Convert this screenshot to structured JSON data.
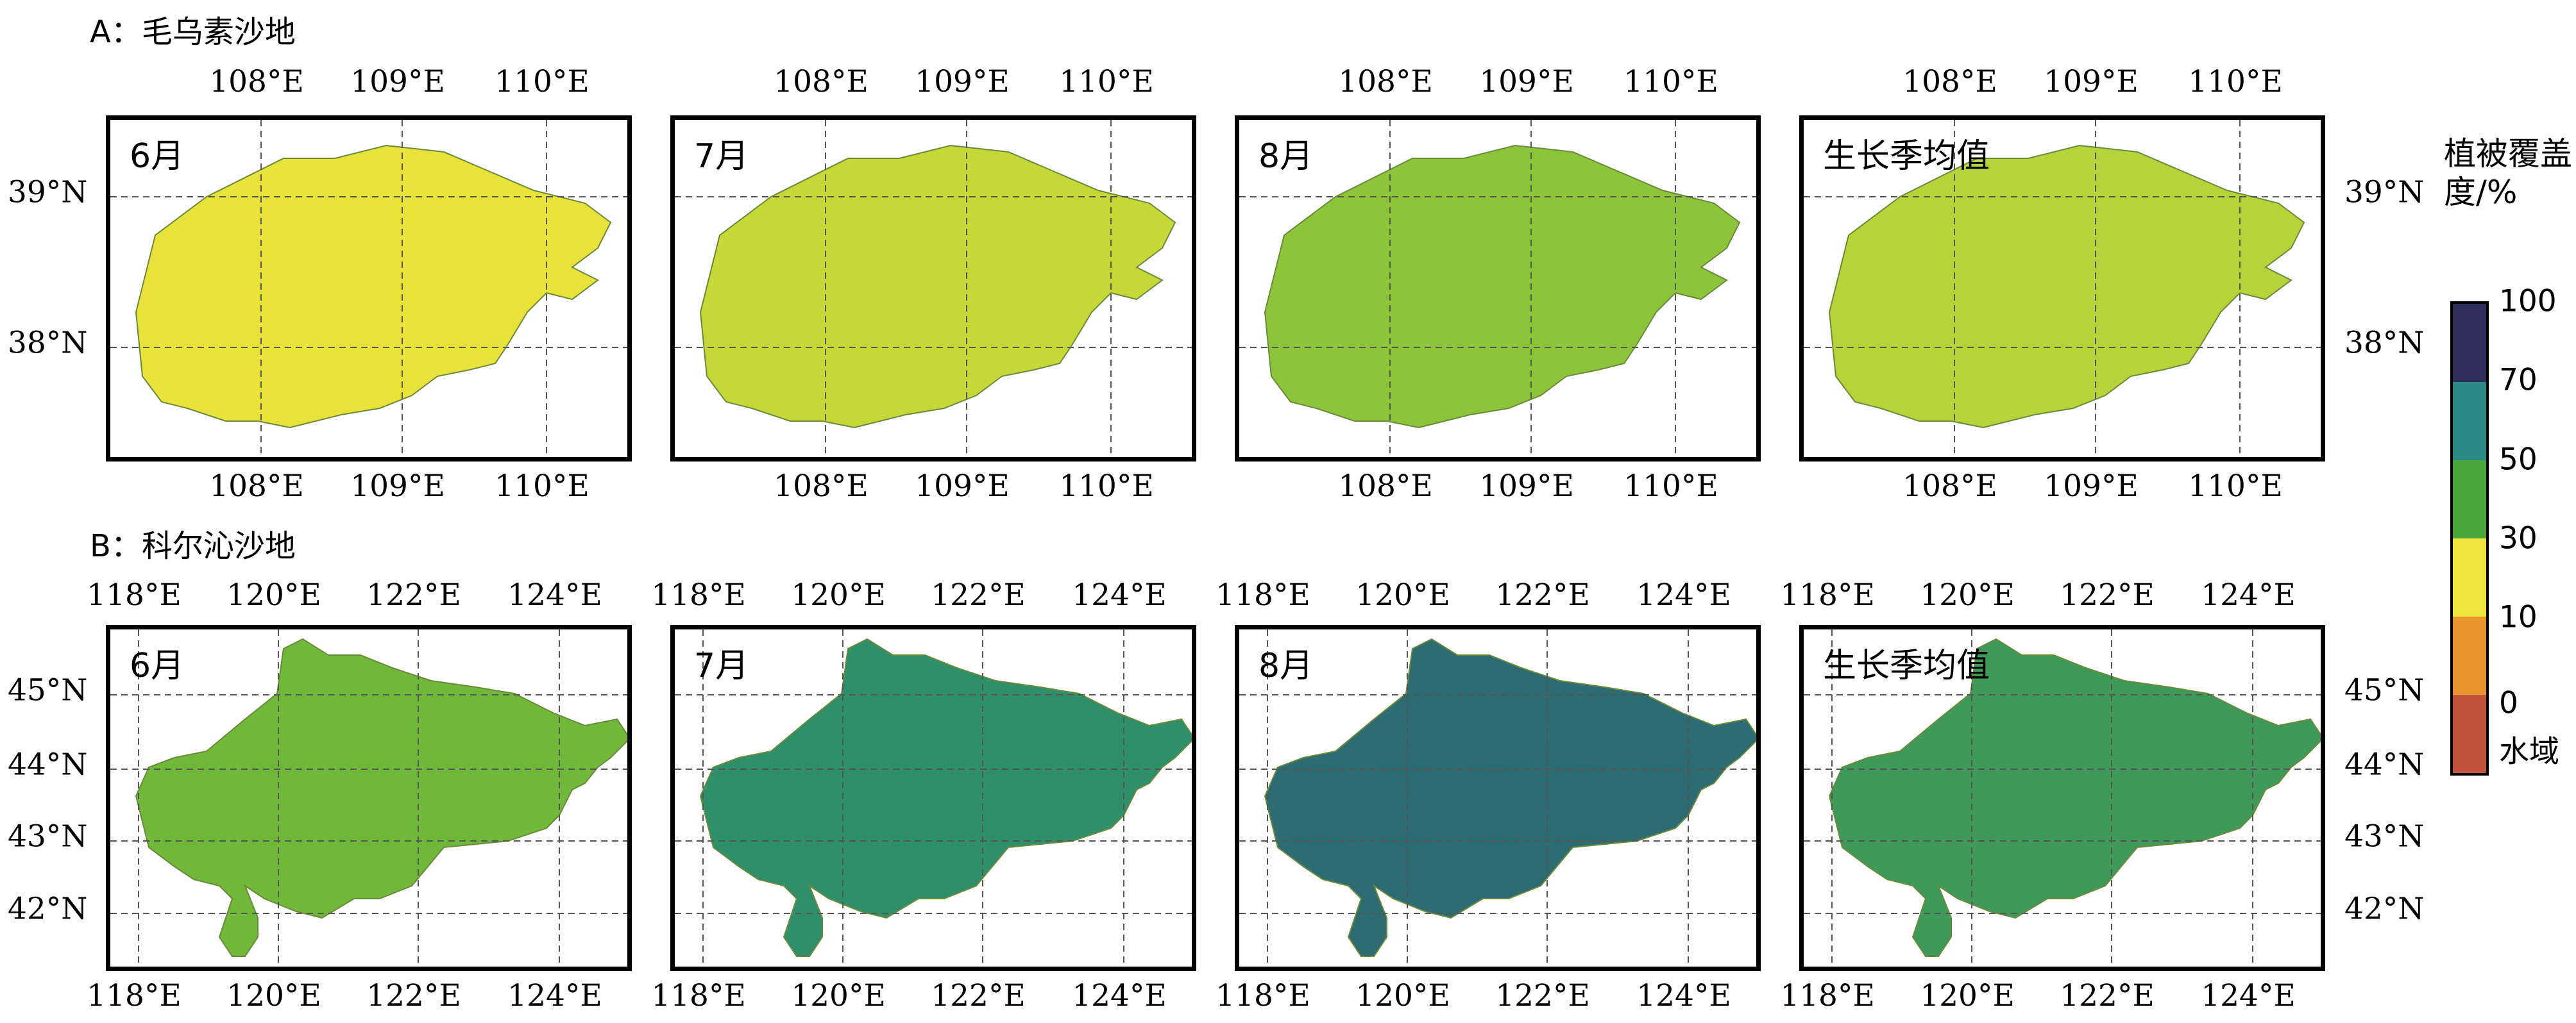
{
  "sections": [
    {
      "id": "A",
      "title": "A：毛乌素沙地",
      "lon_labels": [
        "108°E",
        "109°E",
        "110°E"
      ],
      "lat_labels": [
        "39°N",
        "38°N"
      ],
      "panels": [
        {
          "label": "6月",
          "dominant": "#e8e23a"
        },
        {
          "label": "7月",
          "dominant": "#c6d838"
        },
        {
          "label": "8月",
          "dominant": "#8cc43a"
        },
        {
          "label": "生长季均值",
          "dominant": "#b6d43a"
        }
      ]
    },
    {
      "id": "B",
      "title": "B：科尔沁沙地",
      "lon_labels": [
        "118°E",
        "120°E",
        "122°E",
        "124°E"
      ],
      "lat_labels": [
        "45°N",
        "44°N",
        "43°N",
        "42°N"
      ],
      "panels": [
        {
          "label": "6月",
          "dominant": "#6fb83a"
        },
        {
          "label": "7月",
          "dominant": "#2f8f6a"
        },
        {
          "label": "8月",
          "dominant": "#2c6c72"
        },
        {
          "label": "生长季均值",
          "dominant": "#3f9a5a"
        }
      ]
    }
  ],
  "colorbar": {
    "title": "植被覆盖度/%",
    "ticks": [
      "100",
      "70",
      "50",
      "30",
      "10",
      "0",
      "水域"
    ],
    "colors": [
      "#2d2f5a",
      "#2b8a86",
      "#4aa83a",
      "#f0e43c",
      "#e8952e",
      "#c4533e"
    ]
  }
}
